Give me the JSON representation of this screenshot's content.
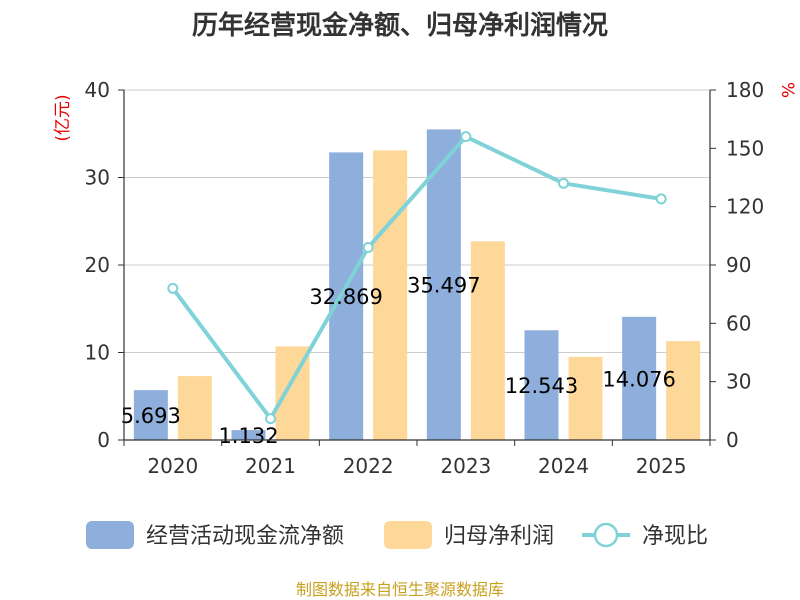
{
  "chart_data": {
    "type": "bar",
    "title": "历年经营现金净额、归母净利润情况",
    "categories": [
      "2020",
      "2021",
      "2022",
      "2023",
      "2024",
      "2025"
    ],
    "series": [
      {
        "name": "经营活动现金流净额",
        "type": "bar",
        "axis": "left",
        "color": "#8eaedb",
        "values": [
          5.693,
          1.132,
          32.869,
          35.497,
          12.543,
          14.076
        ],
        "labels": [
          "5.693",
          "1.132",
          "32.869",
          "35.497",
          "12.543",
          "14.076"
        ]
      },
      {
        "name": "归母净利润",
        "type": "bar",
        "axis": "left",
        "color": "#fdd899",
        "values": [
          7.3,
          10.7,
          33.1,
          22.7,
          9.5,
          11.3
        ]
      },
      {
        "name": "净现比",
        "type": "line",
        "axis": "right",
        "color": "#7fd3d8",
        "values": [
          78,
          11,
          99,
          156,
          132,
          124
        ]
      }
    ],
    "left_axis": {
      "label": "(亿元)",
      "min": 0,
      "max": 40,
      "ticks": [
        0,
        10,
        20,
        30,
        40
      ]
    },
    "right_axis": {
      "label": "%",
      "min": 0,
      "max": 180,
      "ticks": [
        0,
        30,
        60,
        90,
        120,
        150,
        180
      ]
    },
    "grid": true,
    "legend": "bottom",
    "source": "制图数据来自恒生聚源数据库"
  }
}
